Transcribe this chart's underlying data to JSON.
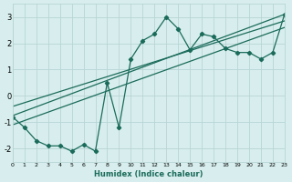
{
  "xlabel": "Humidex (Indice chaleur)",
  "bg_color": "#d8eeee",
  "grid_color": "#b8d4d4",
  "line_color": "#1a6b5a",
  "xlim": [
    0,
    23
  ],
  "ylim": [
    -2.5,
    3.5
  ],
  "xticks": [
    0,
    1,
    2,
    3,
    4,
    5,
    6,
    7,
    8,
    9,
    10,
    11,
    12,
    13,
    14,
    15,
    16,
    17,
    18,
    19,
    20,
    21,
    22,
    23
  ],
  "yticks": [
    -2,
    -1,
    0,
    1,
    2,
    3
  ],
  "main_x": [
    0,
    1,
    2,
    3,
    4,
    5,
    6,
    7,
    8,
    9,
    10,
    11,
    12,
    13,
    14,
    15,
    16,
    17,
    18,
    19,
    20,
    21,
    22,
    23
  ],
  "main_y": [
    -0.8,
    -1.2,
    -1.7,
    -1.9,
    -1.9,
    -2.1,
    -1.85,
    -2.1,
    0.5,
    -1.2,
    1.4,
    2.1,
    2.35,
    3.0,
    2.55,
    1.75,
    2.35,
    2.25,
    1.8,
    1.65,
    1.65,
    1.4,
    1.65,
    3.1
  ],
  "line1_x": [
    0,
    23
  ],
  "line1_y": [
    -0.75,
    3.1
  ],
  "line2_x": [
    0,
    23
  ],
  "line2_y": [
    -1.1,
    2.6
  ],
  "line3_x": [
    0,
    23
  ],
  "line3_y": [
    -0.4,
    2.85
  ]
}
